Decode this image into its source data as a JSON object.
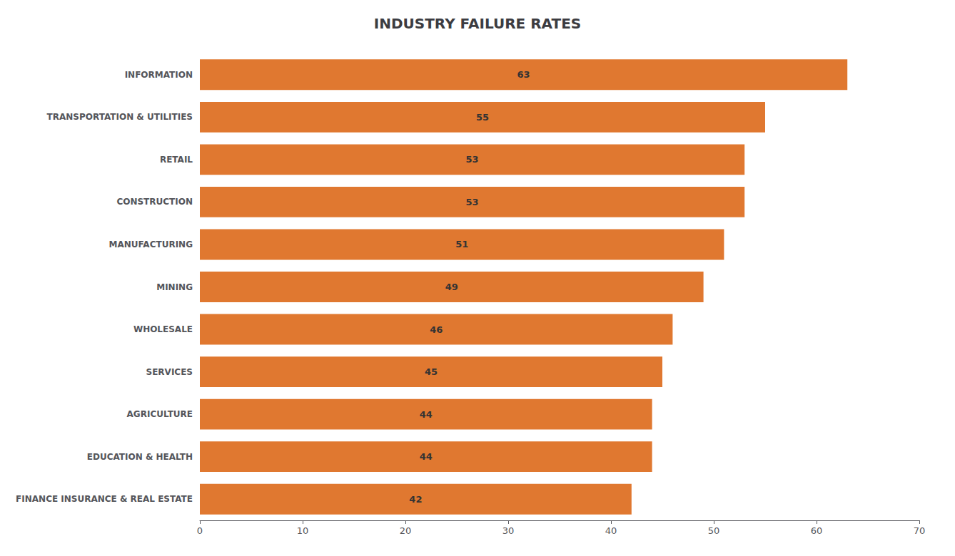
{
  "chart_data": {
    "type": "bar",
    "orientation": "horizontal",
    "title": "INDUSTRY FAILURE RATES",
    "categories": [
      "INFORMATION",
      "TRANSPORTATION & UTILITIES",
      "RETAIL",
      "CONSTRUCTION",
      "MANUFACTURING",
      "MINING",
      "WHOLESALE",
      "SERVICES",
      "AGRICULTURE",
      "EDUCATION & HEALTH",
      "FINANCE INSURANCE & REAL ESTATE"
    ],
    "values": [
      63,
      55,
      53,
      53,
      51,
      49,
      46,
      45,
      44,
      44,
      42
    ],
    "color": "#E07830",
    "xlim": [
      0,
      70
    ],
    "xticks": [
      0,
      10,
      20,
      30,
      40,
      50,
      60,
      70
    ],
    "grid": false,
    "data_labels": true
  }
}
